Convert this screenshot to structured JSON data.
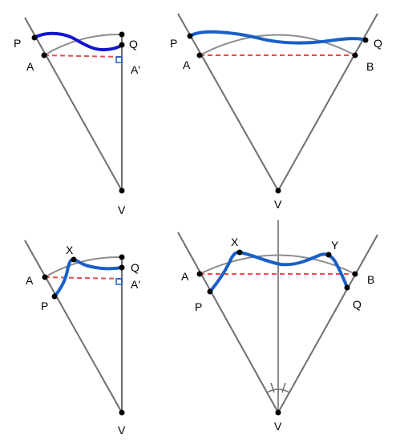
{
  "colors": {
    "background": "#ffffff",
    "ray": "#6e6e6e",
    "arc": "#8c8c8c",
    "chord": "#e05050",
    "path": "#1a5fc8",
    "path_dark": "#1414d2",
    "point": "#000000",
    "right_angle": "#1a5fc8"
  },
  "panels": {
    "top_left": {
      "labels": {
        "p": "P",
        "a": "A",
        "q": "Q",
        "a_prime": "A'",
        "v": "V"
      }
    },
    "top_right": {
      "labels": {
        "p": "P",
        "a": "A",
        "q": "Q",
        "b": "B",
        "v": "V"
      }
    },
    "bottom_left": {
      "labels": {
        "x": "X",
        "a": "A",
        "p": "P",
        "q": "Q",
        "a_prime": "A'",
        "v": "V"
      }
    },
    "bottom_right": {
      "labels": {
        "x": "X",
        "y": "Y",
        "a": "A",
        "b": "B",
        "p": "P",
        "q": "Q",
        "v": "V"
      }
    }
  }
}
